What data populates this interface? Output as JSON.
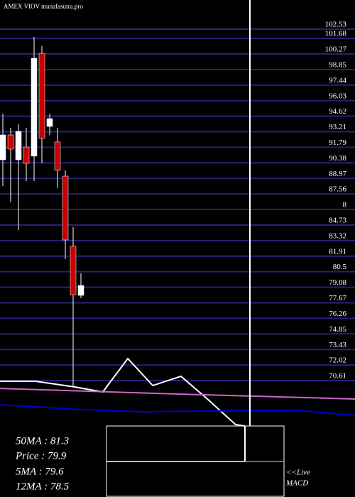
{
  "chart_data": {
    "type": "candlestick",
    "title": "AMEX VIOV munafasutra.pro",
    "x": [
      0,
      1,
      2,
      3,
      4,
      5,
      6,
      7,
      8,
      9,
      10
    ],
    "open": [
      90.66,
      92.92,
      90.66,
      91.82,
      90.99,
      100.33,
      93.69,
      92.28,
      89.18,
      82.8,
      78.35
    ],
    "high": [
      94.85,
      93.56,
      93.88,
      93.56,
      101.82,
      100.98,
      94.85,
      93.56,
      89.7,
      84.54,
      80.35
    ],
    "low": [
      88.28,
      86.8,
      84.28,
      88.73,
      88.73,
      90.34,
      92.92,
      88.08,
      81.64,
      70.03,
      78.09
    ],
    "close": [
      92.92,
      91.63,
      93.24,
      90.34,
      99.88,
      92.6,
      94.4,
      89.7,
      83.38,
      78.41,
      79.25
    ],
    "up_color": "#ffffff",
    "down_color": "#cc0000",
    "series": [
      {
        "color": "#ffffff",
        "x": [
          -0.4,
          4.2,
          9.2,
          12.8,
          16,
          19.2,
          22.8,
          26,
          29.8,
          31
        ],
        "values": [
          70.55,
          70.55,
          70.03,
          69.58,
          72.61,
          70.16,
          71.0,
          69.06,
          66.62,
          66.49
        ]
      },
      {
        "color": "#cc66cc",
        "x": [
          -0.4,
          22.4,
          45.1
        ],
        "values": [
          69.9,
          69.39,
          68.94
        ]
      },
      {
        "color": "#0000cc",
        "x": [
          -0.4,
          8.7,
          17.8,
          31.5,
          37.8,
          45.1
        ],
        "values": [
          68.42,
          68.03,
          67.77,
          67.9,
          67.9,
          67.45
        ]
      }
    ],
    "xlim": [
      -0.364,
      45.09
    ],
    "ylim": [
      60.04,
      105.17
    ],
    "yticks": [
      102.53,
      101.68,
      100.27,
      98.85,
      97.44,
      96.03,
      94.62,
      93.21,
      91.79,
      90.38,
      88.97,
      87.56,
      {
        "value": 86.15,
        "label": "8"
      },
      84.73,
      83.32,
      81.91,
      80.5,
      79.08,
      77.67,
      76.26,
      74.85,
      73.43,
      72.02,
      70.61
    ],
    "grid": true,
    "grid_color": "#23237a",
    "stats": [
      "50MA : 81.3",
      "Price  : 79.9",
      "5MA : 79.6",
      "12MA : 78.5"
    ],
    "macd_note": [
      "<<Live",
      "MACD"
    ]
  }
}
